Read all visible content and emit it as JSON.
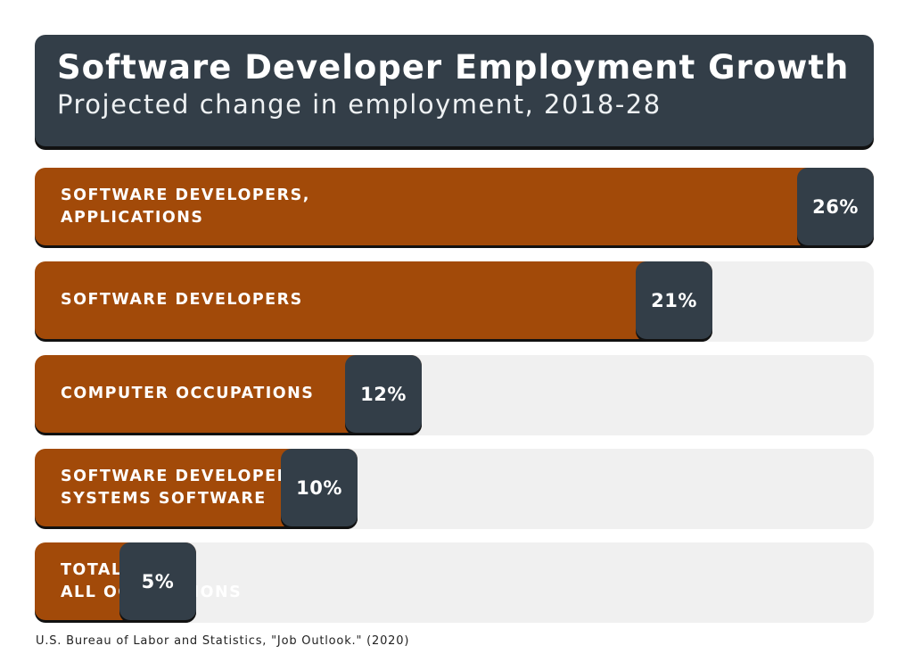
{
  "header": {
    "title": "Software Developer Employment Growth",
    "subtitle": "Projected change in employment, 2018-28"
  },
  "source": "U.S. Bureau of Labor and Statistics, \"Job Outlook.\" (2020)",
  "colors": {
    "bar": "#a24a09",
    "value_box": "#333e48",
    "track": "#f0f0f0",
    "header": "#333e48"
  },
  "chart_data": {
    "type": "bar",
    "orientation": "horizontal",
    "title": "Software Developer Employment Growth",
    "subtitle": "Projected change in employment, 2018-28",
    "categories": [
      "SOFTWARE DEVELOPERS,\nAPPLICATIONS",
      "SOFTWARE DEVELOPERS",
      "COMPUTER OCCUPATIONS",
      "SOFTWARE DEVELOPERS,\nSYSTEMS SOFTWARE",
      "TOTAL,\nALL OCCUPATIONS"
    ],
    "values": [
      26,
      21,
      12,
      10,
      5
    ],
    "value_labels": [
      "26%",
      "21%",
      "12%",
      "10%",
      "5%"
    ],
    "unit": "%",
    "xlim": [
      0,
      26
    ],
    "xlabel": "",
    "ylabel": "",
    "grid": false
  }
}
